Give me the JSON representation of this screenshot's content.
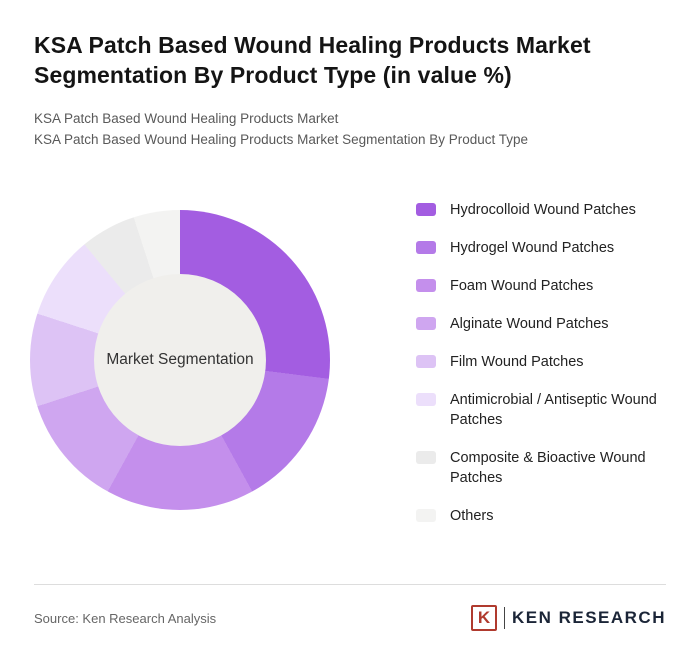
{
  "header": {
    "title": "KSA Patch Based Wound Healing Products Market Segmentation By Product Type (in value %)",
    "subtitle1": "KSA Patch Based Wound Healing Products Market",
    "subtitle2": "KSA Patch Based Wound Healing Products Market Segmentation By Product Type"
  },
  "chart_data": {
    "type": "pie",
    "variant": "donut",
    "title": "KSA Patch Based Wound Healing Products Market Segmentation By Product Type (in value %)",
    "center_label": "Market Segmentation",
    "legend_position": "right",
    "start_angle_deg": 0,
    "direction": "clockwise",
    "segments": [
      {
        "label": "Hydrocolloid Wound Patches",
        "value": 27,
        "color": "#a35de1"
      },
      {
        "label": "Hydrogel Wound Patches",
        "value": 15,
        "color": "#b47ae8"
      },
      {
        "label": "Foam Wound Patches",
        "value": 16,
        "color": "#c48fec"
      },
      {
        "label": "Alginate Wound Patches",
        "value": 12,
        "color": "#cfa6f0"
      },
      {
        "label": "Film Wound Patches",
        "value": 10,
        "color": "#ddc3f5"
      },
      {
        "label": "Antimicrobial / Antiseptic Wound Patches",
        "value": 9,
        "color": "#ecdffb"
      },
      {
        "label": "Composite & Bioactive Wound Patches",
        "value": 6,
        "color": "#ebebeb"
      },
      {
        "label": "Others",
        "value": 5,
        "color": "#f3f3f2"
      }
    ]
  },
  "footer": {
    "source": "Source: Ken Research Analysis",
    "logo_letter": "K",
    "logo_text": "KEN RESEARCH"
  }
}
